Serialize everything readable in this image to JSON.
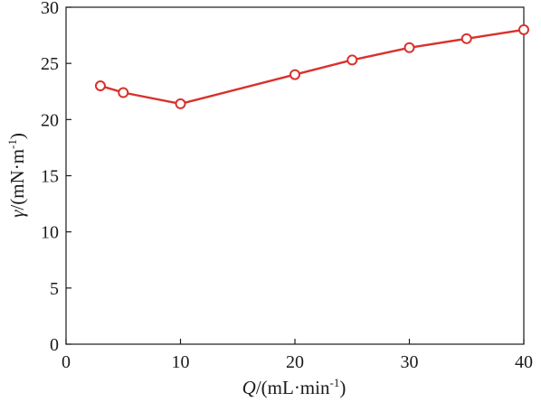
{
  "chart_data": {
    "type": "line",
    "xlabel": {
      "var": "Q",
      "unit_pre": "/(mL·min",
      "unit_sup": "-1",
      "unit_post": ")"
    },
    "ylabel": {
      "var": "γ",
      "unit_pre": "/(mN·m",
      "unit_sup": "-1",
      "unit_post": ")"
    },
    "xlim": [
      0,
      40
    ],
    "ylim": [
      0,
      30
    ],
    "xticks": [
      0,
      10,
      20,
      30,
      40
    ],
    "yticks": [
      0,
      5,
      10,
      15,
      20,
      25,
      30
    ],
    "grid": false,
    "legend": "none",
    "series": [
      {
        "color": "#d8322c",
        "marker": "circle-open",
        "x": [
          3,
          5,
          10,
          20,
          25,
          30,
          35,
          40
        ],
        "y": [
          23.0,
          22.4,
          21.4,
          24.0,
          25.3,
          26.4,
          27.2,
          28.0
        ]
      }
    ]
  }
}
